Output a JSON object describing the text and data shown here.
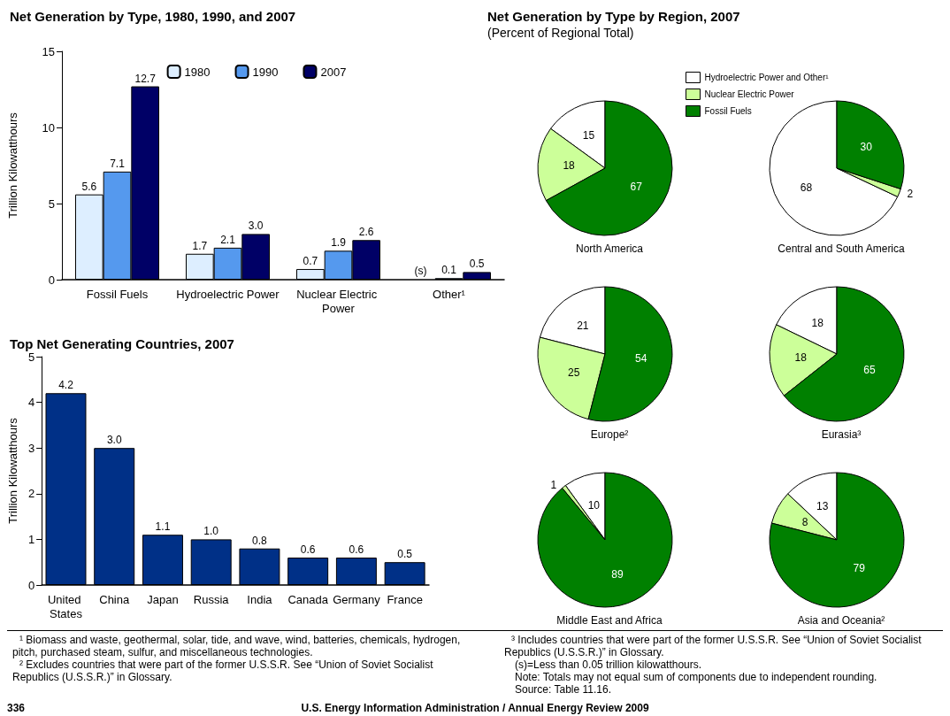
{
  "chart_data": [
    {
      "type": "bar",
      "title": "Net Generation by Type, 1980, 1990, and 2007",
      "ylabel": "Trillion Kilowatthours",
      "categories": [
        "Fossil Fuels",
        "Hydroelectric Power",
        "Nuclear Electric Power",
        "Other¹"
      ],
      "ylim": [
        0,
        15
      ],
      "yticks": [
        0,
        5,
        10,
        15
      ],
      "legend": "top",
      "grid": false,
      "series": [
        {
          "name": "1980",
          "color": "#ddeeff",
          "values": [
            5.6,
            1.7,
            0.7,
            null
          ],
          "value_labels": [
            "5.6",
            "1.7",
            "0.7",
            null
          ]
        },
        {
          "name": "1990",
          "color": "#5599ee",
          "values": [
            7.1,
            2.1,
            1.9,
            0.1
          ],
          "value_labels": [
            "7.1",
            "2.1",
            "1.9",
            "0.1"
          ]
        },
        {
          "name": "2007",
          "color": "#000066",
          "values": [
            12.7,
            3.0,
            2.6,
            0.5
          ],
          "value_labels": [
            "12.7",
            "3.0",
            "2.6",
            "0.5"
          ]
        }
      ],
      "annotations": [
        "¹ Biomass and waste, geothermal, solar, tide, and wave, wind, batteries, chemicals, hydrogen, pitch, purchased steam, sulfur, and miscellaneous technologies.",
        "² Excludes countries that were part of the former U.S.S.R.  See “Union of Soviet Socialist Republics (U.S.S.R.)” in Glossary.",
        "³ Includes countries that were part of the former U.S.S.R.  See “Union of Soviet Socialist Republics (U.S.S.R.)” in Glossary.",
        "(s)=Less than 0.05 trillion kilowatthours.",
        "Note:  Totals may not equal sum of components due to independent rounding.",
        "Source:  Table 11.16.",
        "336",
        "U.S. Energy Information Administration / Annual Energy Review 2009",
        {
          "text": "(s)",
          "x": "Other¹",
          "y": 0
        }
      ]
    },
    {
      "type": "bar",
      "title": "Top Net Generating Countries, 2007",
      "ylabel": "Trillion Kilowatthours",
      "categories": [
        "United States",
        "China",
        "Japan",
        "Russia",
        "India",
        "Canada",
        "Germany",
        "France"
      ],
      "ylim": [
        0,
        5
      ],
      "yticks": [
        0,
        1,
        2,
        3,
        4,
        5
      ],
      "grid": false,
      "series": [
        {
          "color": "#003087",
          "values": [
            4.2,
            3.0,
            1.1,
            1.0,
            0.8,
            0.6,
            0.6,
            0.5
          ],
          "value_labels": [
            "4.2",
            "3.0",
            "1.1",
            "1.0",
            "0.8",
            "0.6",
            "0.6",
            "0.5"
          ]
        }
      ]
    },
    {
      "type": "pie",
      "title": "Net Generation by Type by Region, 2007",
      "subtitle": "(Percent of Regional Total)",
      "xlabel": "North America",
      "legend": "top right",
      "categories": [
        "Hydroelectric Power and Other¹",
        "Nuclear Electric Power",
        "Fossil Fuels"
      ],
      "colors": [
        "#ffffff",
        "#ccff99",
        "#008000"
      ],
      "values": [
        15,
        18,
        67
      ],
      "data_labels": true
    },
    {
      "type": "pie",
      "xlabel": "Central and South America",
      "categories": [
        null,
        null,
        null
      ],
      "colors": [
        "#ffffff",
        "#ccff99",
        "#008000"
      ],
      "values": [
        68,
        2,
        30
      ],
      "data_labels": true
    },
    {
      "type": "pie",
      "xlabel": "Europe²",
      "categories": [
        null,
        null,
        null
      ],
      "colors": [
        "#ffffff",
        "#ccff99",
        "#008000"
      ],
      "values": [
        21,
        25,
        54
      ],
      "data_labels": true
    },
    {
      "type": "pie",
      "xlabel": "Eurasia³",
      "categories": [
        null,
        null,
        null
      ],
      "colors": [
        "#ffffff",
        "#ccff99",
        "#008000"
      ],
      "values": [
        18,
        18,
        65
      ],
      "data_labels": true
    },
    {
      "type": "pie",
      "xlabel": "Middle East and Africa",
      "categories": [
        null,
        null,
        null
      ],
      "colors": [
        "#ffffff",
        "#ccff99",
        "#008000"
      ],
      "values": [
        10,
        1,
        89
      ],
      "data_labels": true
    },
    {
      "type": "pie",
      "xlabel": "Asia and Oceania²",
      "categories": [
        null,
        null,
        null
      ],
      "colors": [
        "#ffffff",
        "#ccff99",
        "#008000"
      ],
      "values": [
        13,
        8,
        79
      ],
      "data_labels": true
    }
  ]
}
